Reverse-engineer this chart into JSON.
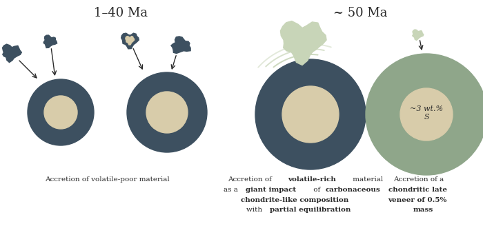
{
  "bg_color": "#ffffff",
  "title_left": "1–40 Ma",
  "title_right": "~ 50 Ma",
  "dark_teal": "#3d5060",
  "light_beige": "#d8ccaa",
  "sage_green": "#8fa68a",
  "light_sage": "#c8d5b8",
  "text_color": "#2a2a2a",
  "font_size_title": 13,
  "font_size_caption": 7.5,
  "font_size_core": 8.0,
  "core_label": "~3 wt.%\nS",
  "figw": 7.0,
  "figh": 3.28,
  "dpi": 100
}
